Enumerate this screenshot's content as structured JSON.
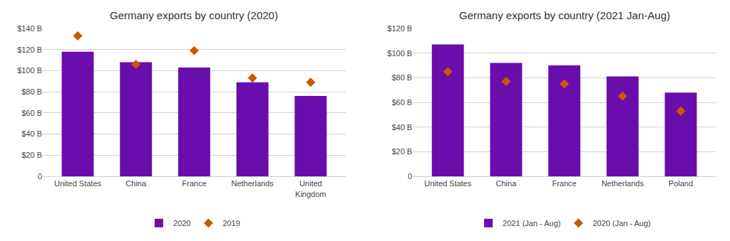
{
  "chart_data": [
    {
      "type": "bar",
      "title": "Germany exports by country (2020)",
      "categories": [
        "United States",
        "China",
        "France",
        "Netherlands",
        "United\nKingdom"
      ],
      "series": [
        {
          "name": "2020",
          "type": "bar",
          "color": "#6a0dad",
          "values": [
            118,
            108,
            103,
            89,
            76
          ]
        },
        {
          "name": "2019",
          "type": "scatter",
          "marker": "diamond",
          "color": "#c85a00",
          "values": [
            133,
            106,
            119,
            93,
            89
          ]
        }
      ],
      "ylim": [
        0,
        140
      ],
      "yticks": [
        0,
        {
          "value": 20,
          "label": "$20 B"
        },
        {
          "value": 40,
          "label": "$40 B"
        },
        {
          "value": 60,
          "label": "$60 B"
        },
        {
          "value": 80,
          "label": "$80 B"
        },
        {
          "value": 100,
          "label": "$100 B"
        },
        {
          "value": 120,
          "label": "$120 B"
        },
        {
          "value": 140,
          "label": "$140 B"
        }
      ],
      "grid": true,
      "legend": "bottom"
    },
    {
      "type": "bar",
      "title": "Germany exports by country (2021 Jan-Aug)",
      "categories": [
        "United States",
        "China",
        "France",
        "Netherlands",
        "Poland"
      ],
      "series": [
        {
          "name": "2021 (Jan - Aug)",
          "type": "bar",
          "color": "#6a0dad",
          "values": [
            107,
            92,
            90,
            81,
            68
          ]
        },
        {
          "name": "2020 (Jan - Aug)",
          "type": "scatter",
          "marker": "diamond",
          "color": "#c85a00",
          "values": [
            85,
            77,
            75,
            65,
            53
          ]
        }
      ],
      "ylim": [
        0,
        120
      ],
      "yticks": [
        0,
        {
          "value": 20,
          "label": "$20 B"
        },
        {
          "value": 40,
          "label": "$40 B"
        },
        {
          "value": 60,
          "label": "$60 B"
        },
        {
          "value": 80,
          "label": "$80 B"
        },
        {
          "value": 100,
          "label": "$100 B"
        },
        {
          "value": 120,
          "label": "$120 B"
        }
      ],
      "grid": true,
      "legend": "bottom"
    }
  ]
}
